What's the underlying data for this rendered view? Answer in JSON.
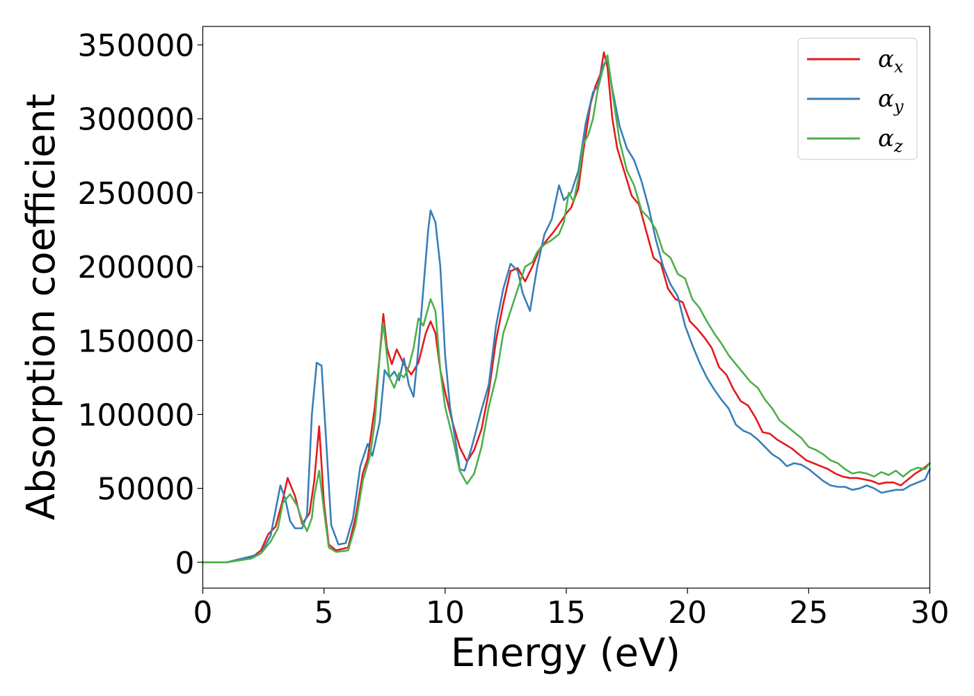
{
  "chart_data": {
    "type": "line",
    "xlabel": "Energy (eV)",
    "ylabel": "Absorption coefficient",
    "xlim": [
      0,
      30
    ],
    "ylim": [
      -17500,
      362500
    ],
    "xticks": [
      0,
      5,
      10,
      15,
      20,
      25,
      30
    ],
    "yticks": [
      0,
      50000,
      100000,
      150000,
      200000,
      250000,
      300000,
      350000
    ],
    "grid": false,
    "legend_position": "top-right",
    "series": [
      {
        "name": "α_x",
        "label_main": "α",
        "label_sub": "x",
        "color": "#e41a1c",
        "x": [
          0,
          1,
          2,
          2.4,
          2.7,
          3.0,
          3.3,
          3.5,
          3.8,
          4.1,
          4.4,
          4.6,
          4.8,
          5.0,
          5.2,
          5.5,
          6.0,
          6.3,
          6.6,
          6.8,
          7.1,
          7.3,
          7.45,
          7.6,
          7.8,
          8.0,
          8.3,
          8.6,
          8.9,
          9.2,
          9.4,
          9.6,
          9.8,
          10.0,
          10.3,
          10.6,
          10.9,
          11.2,
          11.5,
          11.8,
          12.1,
          12.4,
          12.7,
          13.0,
          13.3,
          13.6,
          13.9,
          14.2,
          14.5,
          14.8,
          15.0,
          15.2,
          15.5,
          15.7,
          16.0,
          16.2,
          16.4,
          16.55,
          16.7,
          16.9,
          17.1,
          17.4,
          17.7,
          18.0,
          18.3,
          18.6,
          18.9,
          19.2,
          19.5,
          19.8,
          20.1,
          20.4,
          20.7,
          21.0,
          21.3,
          21.6,
          21.9,
          22.2,
          22.5,
          22.8,
          23.1,
          23.4,
          23.7,
          24.0,
          24.3,
          24.6,
          24.9,
          25.2,
          25.5,
          25.8,
          26.1,
          26.4,
          26.7,
          27.0,
          27.3,
          27.6,
          27.9,
          28.2,
          28.5,
          28.8,
          29.1,
          29.4,
          29.7,
          30.0
        ],
        "y": [
          0,
          0,
          3000,
          8000,
          19000,
          24000,
          42000,
          57000,
          45000,
          26000,
          33000,
          55000,
          92000,
          40000,
          12000,
          8000,
          10000,
          30000,
          60000,
          70000,
          105000,
          140000,
          168000,
          145000,
          134000,
          144000,
          134000,
          127000,
          135000,
          155000,
          163000,
          155000,
          130000,
          115000,
          95000,
          78000,
          68000,
          76000,
          90000,
          115000,
          150000,
          175000,
          197000,
          199000,
          190000,
          200000,
          212000,
          218000,
          224000,
          231000,
          236000,
          240000,
          253000,
          278000,
          310000,
          322000,
          330000,
          345000,
          335000,
          300000,
          280000,
          264000,
          248000,
          242000,
          224000,
          206000,
          202000,
          185000,
          178000,
          176000,
          163000,
          158000,
          152000,
          145000,
          132000,
          127000,
          117000,
          109000,
          106000,
          98000,
          88000,
          87000,
          83000,
          80000,
          77000,
          73000,
          69000,
          67000,
          65000,
          63000,
          60000,
          58000,
          57000,
          57000,
          56000,
          55000,
          53000,
          54000,
          54000,
          52000,
          56000,
          60000,
          63000,
          67000
        ]
      },
      {
        "name": "α_y",
        "label_main": "α",
        "label_sub": "y",
        "color": "#377eb8",
        "x": [
          0,
          1,
          2,
          2.4,
          2.8,
          3.0,
          3.2,
          3.4,
          3.6,
          3.8,
          4.1,
          4.3,
          4.5,
          4.7,
          4.9,
          5.1,
          5.3,
          5.6,
          5.9,
          6.2,
          6.5,
          6.8,
          7.0,
          7.3,
          7.5,
          7.7,
          7.9,
          8.1,
          8.3,
          8.5,
          8.7,
          8.9,
          9.1,
          9.3,
          9.4,
          9.6,
          9.8,
          10.0,
          10.2,
          10.4,
          10.6,
          10.8,
          11.1,
          11.5,
          11.8,
          12.1,
          12.4,
          12.7,
          13.0,
          13.2,
          13.5,
          13.8,
          14.1,
          14.4,
          14.7,
          14.9,
          15.2,
          15.5,
          15.8,
          16.1,
          16.3,
          16.5,
          16.7,
          16.9,
          17.2,
          17.5,
          17.8,
          18.1,
          18.4,
          18.7,
          19.0,
          19.3,
          19.6,
          19.9,
          20.2,
          20.5,
          20.8,
          21.1,
          21.4,
          21.7,
          22.0,
          22.3,
          22.6,
          22.9,
          23.2,
          23.5,
          23.8,
          24.1,
          24.4,
          24.7,
          25.0,
          25.3,
          25.6,
          25.9,
          26.2,
          26.5,
          26.8,
          27.1,
          27.4,
          27.7,
          28.0,
          28.3,
          28.6,
          28.9,
          29.2,
          29.5,
          29.8,
          30.0
        ],
        "y": [
          0,
          0,
          4000,
          6000,
          18000,
          35000,
          52000,
          43000,
          28000,
          23000,
          23000,
          32000,
          100000,
          135000,
          133000,
          80000,
          25000,
          12000,
          13000,
          30000,
          65000,
          80000,
          72000,
          95000,
          130000,
          125000,
          129000,
          123000,
          138000,
          120000,
          112000,
          145000,
          185000,
          225000,
          238000,
          230000,
          200000,
          140000,
          105000,
          85000,
          63000,
          62000,
          78000,
          103000,
          120000,
          160000,
          185000,
          202000,
          197000,
          182000,
          170000,
          200000,
          222000,
          232000,
          255000,
          245000,
          250000,
          265000,
          297000,
          318000,
          322000,
          336000,
          340000,
          320000,
          295000,
          280000,
          272000,
          258000,
          240000,
          218000,
          200000,
          188000,
          180000,
          160000,
          147000,
          135000,
          125000,
          117000,
          110000,
          104000,
          93000,
          89000,
          87000,
          83000,
          78000,
          73000,
          70000,
          65000,
          67000,
          66000,
          63000,
          59000,
          55000,
          52000,
          51000,
          51000,
          49000,
          50000,
          52000,
          50000,
          47000,
          48000,
          49000,
          49000,
          52000,
          54000,
          56000,
          63000
        ]
      },
      {
        "name": "α_z",
        "label_main": "α",
        "label_sub": "z",
        "color": "#4daf4a",
        "x": [
          0,
          1,
          2,
          2.4,
          2.8,
          3.1,
          3.3,
          3.6,
          3.9,
          4.1,
          4.3,
          4.5,
          4.6,
          4.8,
          5.0,
          5.2,
          5.5,
          6.0,
          6.3,
          6.6,
          6.9,
          7.1,
          7.3,
          7.45,
          7.7,
          7.9,
          8.1,
          8.3,
          8.5,
          8.7,
          8.9,
          9.1,
          9.4,
          9.6,
          9.8,
          10.0,
          10.3,
          10.6,
          10.9,
          11.2,
          11.5,
          11.8,
          12.1,
          12.4,
          12.7,
          13.0,
          13.3,
          13.6,
          13.8,
          14.1,
          14.4,
          14.7,
          14.9,
          15.1,
          15.3,
          15.5,
          15.7,
          15.9,
          16.1,
          16.3,
          16.5,
          16.7,
          16.9,
          17.2,
          17.5,
          17.8,
          18.1,
          18.4,
          18.7,
          19.0,
          19.3,
          19.6,
          19.9,
          20.2,
          20.5,
          20.8,
          21.1,
          21.4,
          21.7,
          22.0,
          22.3,
          22.6,
          22.9,
          23.2,
          23.5,
          23.8,
          24.1,
          24.4,
          24.7,
          25.0,
          25.3,
          25.6,
          25.9,
          26.2,
          26.5,
          26.8,
          27.1,
          27.4,
          27.7,
          28.0,
          28.3,
          28.6,
          28.9,
          29.2,
          29.5,
          29.8,
          30.0
        ],
        "y": [
          0,
          0,
          2500,
          6000,
          14000,
          23000,
          40000,
          46000,
          38000,
          28000,
          21000,
          30000,
          45000,
          62000,
          35000,
          10000,
          7000,
          8000,
          25000,
          55000,
          72000,
          95000,
          140000,
          162000,
          125000,
          118000,
          128000,
          125000,
          132000,
          145000,
          165000,
          160000,
          178000,
          170000,
          130000,
          105000,
          85000,
          62000,
          53000,
          60000,
          78000,
          105000,
          125000,
          155000,
          170000,
          185000,
          200000,
          203000,
          210000,
          215000,
          218000,
          222000,
          230000,
          250000,
          244000,
          260000,
          283000,
          289000,
          300000,
          320000,
          333000,
          343000,
          318000,
          285000,
          265000,
          255000,
          238000,
          233000,
          225000,
          210000,
          206000,
          195000,
          192000,
          178000,
          172000,
          163000,
          155000,
          148000,
          140000,
          134000,
          128000,
          122000,
          118000,
          110000,
          104000,
          96000,
          92000,
          88000,
          84000,
          78000,
          76000,
          73000,
          69000,
          67000,
          63000,
          60000,
          61000,
          60000,
          58000,
          61000,
          59000,
          62000,
          58000,
          62000,
          64000,
          63000,
          67000
        ]
      }
    ]
  }
}
